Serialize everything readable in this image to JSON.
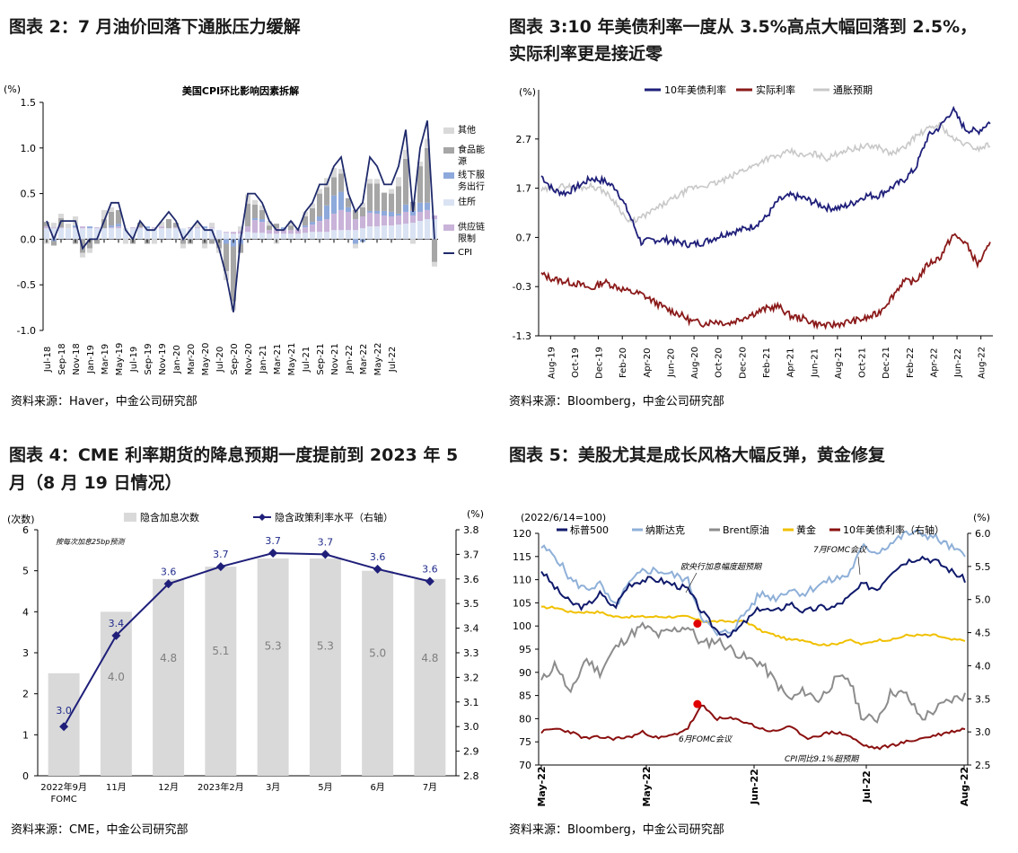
{
  "panels": {
    "p2": {
      "title": "图表 2：7 月油价回落下通胀压力缓解",
      "source": "资料来源：Haver，中金公司研究部"
    },
    "p3": {
      "title_line1": "图表 3:10 年美债利率一度从 3.5%高点大幅回落到 2.5%，",
      "title_line2": "实际利率更是接近零",
      "source": "资料来源：Bloomberg，中金公司研究部"
    },
    "p4": {
      "title_line1": "图表 4：CME 利率期货的降息预期一度提前到 2023 年 5",
      "title_line2": "月（8 月 19 日情况）",
      "source": "资料来源：CME，中金公司研究部"
    },
    "p5": {
      "title": "图表 5：美股尤其是成长风格大幅反弹，黄金修复",
      "source": "资料来源：Bloomberg，中金公司研究部"
    }
  },
  "chart_data": [
    {
      "id": "cpi",
      "type": "bar",
      "title": "美国CPI环比影响因素拆解",
      "unit": "(%)",
      "ylim": [
        -1.0,
        1.5
      ],
      "yticks": [
        "-1.0",
        "-0.5",
        "0.0",
        "0.5",
        "1.0",
        "1.5"
      ],
      "xticks": [
        "Jul-18",
        "Sep-18",
        "Nov-18",
        "Jan-19",
        "Mar-19",
        "May-19",
        "Jul-19",
        "Sep-19",
        "Nov-19",
        "Jan-20",
        "Mar-20",
        "May-20",
        "Jul-20",
        "Sep-20",
        "Nov-20",
        "Jan-21",
        "Mar-21",
        "May-21",
        "Jul-21",
        "Sep-21",
        "Nov-21",
        "Jan-22",
        "Mar-22",
        "May-22",
        "Jul-22"
      ],
      "legend": [
        "其他",
        "食品能源",
        "线下服务出行",
        "住所",
        "供应链限制",
        "CPI"
      ],
      "colors": {
        "other": "#d9d9d9",
        "food": "#a6a6a6",
        "service": "#8ea9db",
        "shelter": "#dae3f3",
        "supply": "#c9b3d9",
        "cpi": "#1f2a6b"
      },
      "cpi": [
        0.2,
        0.0,
        0.2,
        0.2,
        0.2,
        -0.1,
        0.0,
        0.0,
        0.2,
        0.4,
        0.4,
        0.1,
        0.0,
        0.2,
        0.1,
        0.1,
        0.2,
        0.3,
        0.2,
        0.0,
        0.1,
        0.2,
        0.1,
        0.1,
        -0.1,
        -0.4,
        -0.8,
        0.0,
        0.5,
        0.5,
        0.4,
        0.2,
        0.1,
        0.1,
        0.2,
        0.1,
        0.3,
        0.4,
        0.6,
        0.6,
        0.8,
        0.9,
        0.5,
        0.3,
        0.4,
        0.9,
        0.8,
        0.6,
        0.6,
        0.8,
        1.2,
        0.3,
        1.0,
        1.3,
        0.0
      ],
      "other": [
        -0.05,
        0.05,
        0.05,
        0.05,
        0.1,
        -0.05,
        -0.05,
        0.0,
        0.1,
        0.05,
        0.0,
        -0.05,
        0.0,
        0.0,
        0.0,
        -0.05,
        0.05,
        0.0,
        0.0,
        -0.05,
        0.0,
        0.05,
        -0.05,
        0.05,
        -0.05,
        -0.1,
        -0.1,
        0.05,
        0.1,
        0.05,
        0.05,
        0.05,
        -0.05,
        0.0,
        0.05,
        0.0,
        0.05,
        0.05,
        0.05,
        0.1,
        0.1,
        0.05,
        0.0,
        -0.05,
        0.05,
        0.05,
        0.05,
        0.0,
        0.05,
        0.1,
        0.1,
        -0.05,
        0.05,
        0.1,
        -0.05
      ],
      "food": [
        0.05,
        -0.05,
        0.1,
        0.0,
        -0.05,
        -0.15,
        -0.1,
        -0.05,
        0.1,
        0.15,
        0.15,
        0.0,
        -0.05,
        0.05,
        -0.05,
        0.0,
        0.0,
        0.1,
        0.05,
        -0.05,
        -0.05,
        0.0,
        -0.05,
        -0.05,
        -0.1,
        -0.3,
        -0.6,
        -0.1,
        0.25,
        0.15,
        0.1,
        0.05,
        0.05,
        0.0,
        0.05,
        0.0,
        0.1,
        0.15,
        0.25,
        0.2,
        0.2,
        0.2,
        0.1,
        0.1,
        0.1,
        0.3,
        0.3,
        0.2,
        0.2,
        0.3,
        0.5,
        0.1,
        0.4,
        0.6,
        -0.25
      ],
      "service": [
        0.0,
        -0.02,
        0.0,
        0.0,
        0.02,
        0.0,
        0.02,
        0.0,
        0.0,
        0.02,
        0.03,
        0.0,
        0.0,
        0.0,
        0.02,
        0.0,
        0.0,
        0.0,
        0.0,
        0.0,
        0.0,
        0.0,
        0.02,
        0.0,
        0.0,
        -0.05,
        -0.08,
        -0.05,
        0.0,
        0.02,
        0.03,
        0.0,
        0.0,
        0.02,
        0.0,
        0.0,
        0.02,
        0.03,
        0.05,
        0.15,
        0.2,
        0.2,
        0.05,
        -0.05,
        -0.03,
        0.02,
        0.03,
        0.05,
        0.05,
        0.02,
        0.08,
        0.05,
        0.1,
        0.08,
        0.0
      ],
      "shelter": [
        0.12,
        0.12,
        0.12,
        0.12,
        0.12,
        0.12,
        0.12,
        0.12,
        0.12,
        0.12,
        0.12,
        0.12,
        0.12,
        0.12,
        0.12,
        0.12,
        0.12,
        0.12,
        0.12,
        0.12,
        0.12,
        0.12,
        0.12,
        0.12,
        0.1,
        0.07,
        0.06,
        0.06,
        0.08,
        0.07,
        0.07,
        0.06,
        0.06,
        0.06,
        0.06,
        0.06,
        0.07,
        0.08,
        0.08,
        0.08,
        0.1,
        0.1,
        0.1,
        0.1,
        0.12,
        0.14,
        0.14,
        0.15,
        0.15,
        0.16,
        0.17,
        0.18,
        0.2,
        0.22,
        0.22
      ],
      "supply": [
        0.02,
        0.01,
        0.01,
        0.0,
        0.01,
        0.02,
        0.0,
        0.01,
        0.0,
        0.01,
        0.02,
        0.0,
        0.01,
        0.01,
        0.0,
        0.01,
        0.02,
        0.0,
        0.01,
        0.0,
        0.01,
        0.01,
        0.0,
        0.01,
        0.0,
        0.01,
        0.02,
        0.03,
        0.06,
        0.14,
        0.12,
        0.04,
        0.06,
        0.05,
        0.04,
        0.05,
        0.06,
        0.08,
        0.12,
        0.14,
        0.18,
        0.22,
        0.2,
        0.12,
        0.13,
        0.15,
        0.14,
        0.11,
        0.1,
        0.1,
        0.13,
        0.08,
        0.1,
        0.1,
        0.04
      ]
    },
    {
      "id": "yields",
      "type": "line",
      "unit": "(%)",
      "ylim": [
        -1.3,
        3.7
      ],
      "yticks": [
        "-1.3",
        "-0.3",
        "0.7",
        "1.7",
        "2.7"
      ],
      "xticks": [
        "Aug-19",
        "Oct-19",
        "Dec-19",
        "Feb-20",
        "Apr-20",
        "Jun-20",
        "Aug-20",
        "Oct-20",
        "Dec-20",
        "Feb-21",
        "Apr-21",
        "Jun-21",
        "Aug-21",
        "Oct-21",
        "Dec-21",
        "Feb-22",
        "Apr-22",
        "Jun-22",
        "Aug-22"
      ],
      "series": [
        {
          "name": "10年美债利率",
          "color": "#1f1f7a",
          "values": [
            1.95,
            1.65,
            1.6,
            1.75,
            1.9,
            1.85,
            1.7,
            1.2,
            0.6,
            0.65,
            0.65,
            0.6,
            0.55,
            0.6,
            0.7,
            0.8,
            0.85,
            0.93,
            1.1,
            1.45,
            1.55,
            1.5,
            1.4,
            1.3,
            1.3,
            1.4,
            1.55,
            1.55,
            1.7,
            1.85,
            2.1,
            2.75,
            2.95,
            3.3,
            2.9,
            2.85,
            3.05
          ]
        },
        {
          "name": "实际利率",
          "color": "#8b1a1a",
          "values": [
            -0.05,
            -0.15,
            -0.2,
            -0.25,
            -0.35,
            -0.2,
            -0.3,
            -0.4,
            -0.45,
            -0.6,
            -0.75,
            -0.85,
            -1.0,
            -1.05,
            -1.0,
            -1.05,
            -0.95,
            -0.85,
            -0.75,
            -0.7,
            -0.9,
            -0.95,
            -1.05,
            -1.1,
            -1.05,
            -1.0,
            -0.95,
            -0.85,
            -0.55,
            -0.2,
            -0.2,
            0.15,
            0.3,
            0.75,
            0.6,
            0.15,
            0.55
          ]
        },
        {
          "name": "通胀预期",
          "color": "#c8c8c8",
          "values": [
            1.65,
            1.7,
            1.75,
            1.7,
            1.75,
            1.65,
            1.4,
            1.0,
            1.1,
            1.25,
            1.4,
            1.55,
            1.7,
            1.75,
            1.8,
            1.9,
            2.05,
            2.15,
            2.3,
            2.35,
            2.45,
            2.35,
            2.4,
            2.3,
            2.45,
            2.5,
            2.55,
            2.55,
            2.4,
            2.5,
            2.75,
            2.9,
            3.0,
            2.7,
            2.6,
            2.5,
            2.6
          ]
        }
      ]
    },
    {
      "id": "cme",
      "type": "bar",
      "unit_left": "(次数)",
      "unit_right": "(%)",
      "ylim_left": [
        0,
        6
      ],
      "ylim_right": [
        2.8,
        3.8
      ],
      "yticks_left": [
        "0",
        "1",
        "2",
        "3",
        "4",
        "5",
        "6"
      ],
      "yticks_right": [
        "2.8",
        "2.9",
        "3.0",
        "3.1",
        "3.2",
        "3.3",
        "3.4",
        "3.5",
        "3.6",
        "3.7",
        "3.8"
      ],
      "categories": [
        "2022年9月\nFOMC",
        "11月",
        "12月",
        "2023年2月",
        "3月",
        "5月",
        "6月",
        "7月"
      ],
      "legend": [
        "隐含加息次数",
        "隐含政策利率水平（右轴）"
      ],
      "note": "按每次加息25bp预测",
      "hikes": [
        2.5,
        4.0,
        4.8,
        5.1,
        5.3,
        5.3,
        5.0,
        4.8
      ],
      "hike_labels": [
        "",
        "4.0",
        "4.8",
        "5.1",
        "5.3",
        "5.3",
        "5.0",
        "4.8"
      ],
      "rate": [
        3.0,
        3.37,
        3.58,
        3.65,
        3.705,
        3.7,
        3.64,
        3.59
      ],
      "rate_labels": [
        "3.0",
        "3.4",
        "3.6",
        "3.7",
        "3.7",
        "3.7",
        "3.6",
        "3.6"
      ]
    },
    {
      "id": "stocks",
      "type": "line",
      "unit_left": "(2022/6/14=100)",
      "unit_right": "(%)",
      "ylim_left": [
        70,
        120
      ],
      "ylim_right": [
        2.5,
        6.0
      ],
      "yticks_left": [
        "70",
        "75",
        "80",
        "85",
        "90",
        "95",
        "100",
        "105",
        "110",
        "115",
        "120"
      ],
      "yticks_right": [
        "2.5",
        "3.0",
        "3.5",
        "4.0",
        "4.5",
        "5.0",
        "5.5",
        "6.0"
      ],
      "xticks": [
        "May-22",
        "May-22",
        "Jun-22",
        "Jul-22",
        "Aug-22"
      ],
      "legend": [
        "标普500",
        "纳斯达克",
        "Brent原油",
        "黄金",
        "10年美债利率（右轴）"
      ],
      "annotations": [
        "欧央行加息幅度超预期",
        "7月FOMC会议",
        "6月FOMC会议",
        "CPI同比9.1%超预期"
      ],
      "series": [
        {
          "name": "标普500",
          "color": "#101a6b",
          "values": [
            112,
            108,
            105,
            104,
            107,
            104,
            109,
            110,
            110,
            109,
            108,
            103,
            99,
            98,
            101,
            104,
            103,
            105,
            103,
            104,
            104,
            106,
            109,
            108,
            112,
            114,
            115,
            114,
            112,
            110
          ]
        },
        {
          "name": "纳斯达克",
          "color": "#8fb0d8",
          "values": [
            117,
            115,
            110,
            108,
            109,
            104,
            109,
            112,
            112,
            111,
            110,
            102,
            98,
            99,
            103,
            107,
            106,
            108,
            107,
            109,
            110,
            111,
            117,
            116,
            118,
            120,
            120,
            119,
            117,
            115
          ]
        },
        {
          "name": "Brent原油",
          "color": "#8c8c8c",
          "values": [
            88,
            92,
            85,
            93,
            90,
            95,
            98,
            100,
            98,
            99,
            100,
            96,
            97,
            95,
            93,
            92,
            88,
            84,
            86,
            84,
            88,
            89,
            80,
            80,
            86,
            85,
            80,
            82,
            84,
            85
          ]
        },
        {
          "name": "黄金",
          "color": "#f0c000",
          "values": [
            104,
            104,
            103,
            103,
            103,
            102,
            102,
            102,
            102,
            102,
            102,
            101,
            101,
            101,
            101,
            99,
            98,
            97,
            97,
            96,
            96,
            97,
            96,
            97,
            97,
            98,
            98,
            98,
            97,
            97
          ]
        },
        {
          "name": "10年美债利率（右轴）",
          "color": "#8b1010",
          "values": [
            3.0,
            3.05,
            3.0,
            2.9,
            2.92,
            2.9,
            2.92,
            3.0,
            2.9,
            2.95,
            3.05,
            3.4,
            3.2,
            3.2,
            3.15,
            3.05,
            3.0,
            3.1,
            2.9,
            2.95,
            3.0,
            2.95,
            2.8,
            2.75,
            2.8,
            2.85,
            2.9,
            2.95,
            3.0,
            3.05
          ]
        }
      ]
    }
  ]
}
